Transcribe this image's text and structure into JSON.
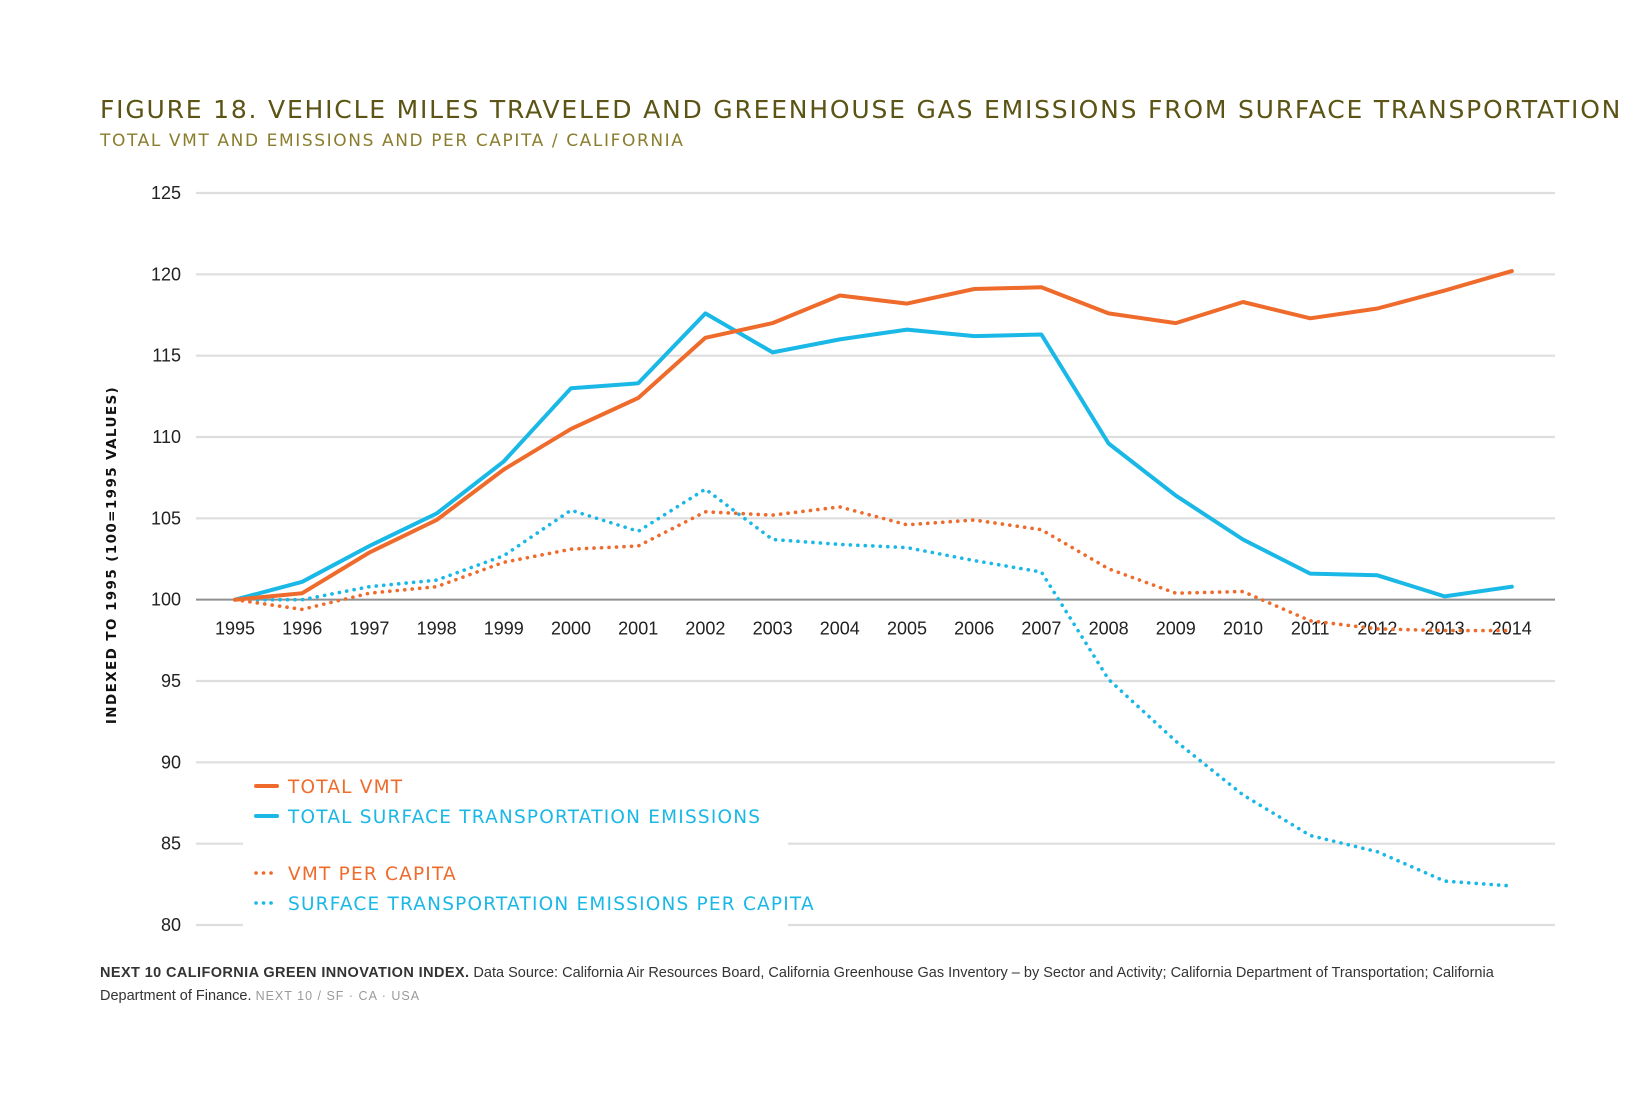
{
  "header": {
    "title": "FIGURE 18. VEHICLE MILES TRAVELED AND GREENHOUSE GAS EMISSIONS FROM SURFACE TRANSPORTATION",
    "subtitle": "TOTAL VMT AND EMISSIONS AND PER CAPITA / CALIFORNIA"
  },
  "footer": {
    "source_bold": "NEXT 10 CALIFORNIA GREEN INNOVATION INDEX.",
    "source_text": " Data Source: California Air Resources Board, California Greenhouse Gas Inventory – by Sector and Activity; California Department of Transportation; California Department of Finance.",
    "credit": "NEXT 10  /  SF · CA · USA"
  },
  "chart_data": {
    "type": "line",
    "ylabel": "INDEXED TO 1995 (100=1995 VALUES)",
    "xlabel": "",
    "ylim": [
      80,
      125
    ],
    "yticks": [
      80,
      85,
      90,
      95,
      100,
      105,
      110,
      115,
      120,
      125
    ],
    "grid": true,
    "legend_placement": "bottom-left",
    "categories": [
      "1995",
      "1996",
      "1997",
      "1998",
      "1999",
      "2000",
      "2001",
      "2002",
      "2003",
      "2004",
      "2005",
      "2006",
      "2007",
      "2008",
      "2009",
      "2010",
      "2011",
      "2012",
      "2013",
      "2014"
    ],
    "series": [
      {
        "name": "TOTAL VMT",
        "color": "#ef6b2c",
        "style": "solid",
        "values": [
          100,
          100.4,
          102.9,
          104.9,
          108.0,
          110.5,
          112.4,
          116.1,
          117.0,
          118.7,
          118.2,
          119.1,
          119.2,
          117.6,
          117.0,
          118.3,
          117.3,
          117.9,
          119.0,
          120.2
        ]
      },
      {
        "name": "TOTAL SURFACE TRANSPORTATION EMISSIONS",
        "color": "#1ab8e6",
        "style": "solid",
        "values": [
          100,
          101.1,
          103.3,
          105.3,
          108.5,
          113.0,
          113.3,
          117.6,
          115.2,
          116.0,
          116.6,
          116.2,
          116.3,
          109.6,
          106.4,
          103.7,
          101.6,
          101.5,
          100.2,
          100.8
        ]
      },
      {
        "name": "VMT PER CAPITA",
        "color": "#ef6b2c",
        "style": "dotted",
        "values": [
          100,
          99.4,
          100.4,
          100.8,
          102.3,
          103.1,
          103.3,
          105.4,
          105.2,
          105.7,
          104.6,
          104.9,
          104.3,
          101.9,
          100.4,
          100.5,
          98.7,
          98.2,
          98.1,
          98.1
        ]
      },
      {
        "name": "SURFACE TRANSPORTATION EMISSIONS PER CAPITA",
        "color": "#1ab8e6",
        "style": "dotted",
        "values": [
          100,
          100.0,
          100.8,
          101.2,
          102.7,
          105.5,
          104.2,
          106.8,
          103.7,
          103.4,
          103.2,
          102.4,
          101.7,
          95.1,
          91.3,
          88.0,
          85.5,
          84.5,
          82.7,
          82.4
        ]
      }
    ]
  }
}
